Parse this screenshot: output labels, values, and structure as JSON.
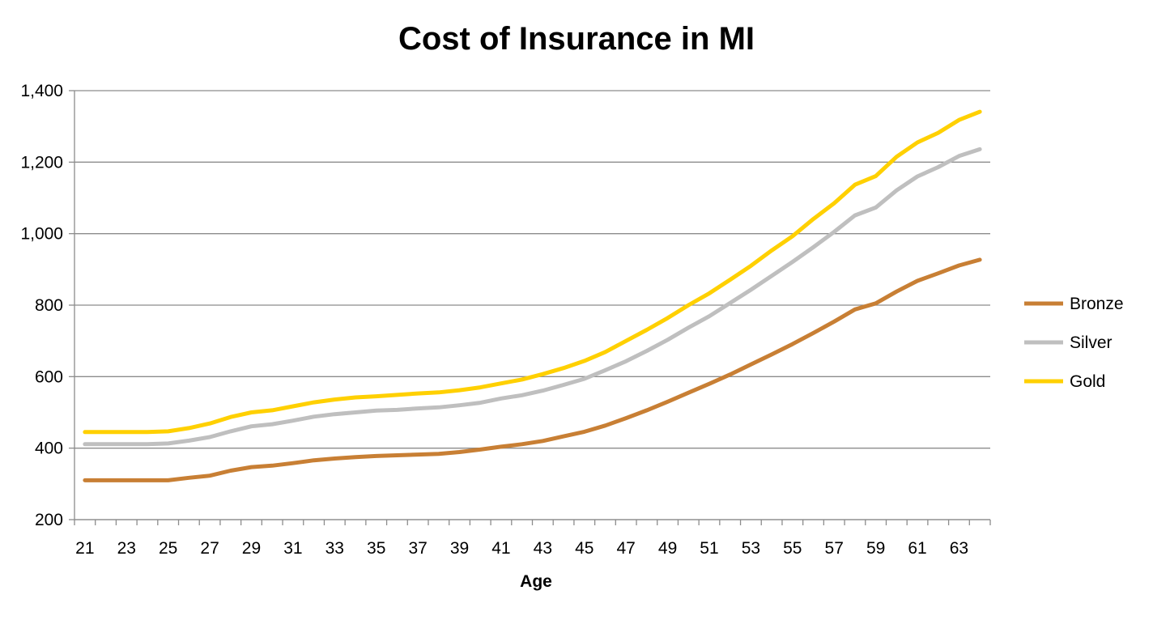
{
  "chart_data": {
    "type": "line",
    "title": "Cost of Insurance in MI",
    "xlabel": "Age",
    "ylabel": "",
    "ylim": [
      200,
      1400
    ],
    "yticks": [
      200,
      400,
      600,
      800,
      1000,
      1200,
      1400
    ],
    "ytick_labels": [
      "200",
      "400",
      "600",
      "800",
      "1,000",
      "1,200",
      "1,400"
    ],
    "xlim": [
      21,
      64
    ],
    "xtick_labels": [
      "21",
      "23",
      "25",
      "27",
      "29",
      "31",
      "33",
      "35",
      "37",
      "39",
      "41",
      "43",
      "45",
      "47",
      "49",
      "51",
      "53",
      "55",
      "57",
      "59",
      "61",
      "63"
    ],
    "grid": true,
    "legend_position": "right",
    "x": [
      21,
      22,
      23,
      24,
      25,
      26,
      27,
      28,
      29,
      30,
      31,
      32,
      33,
      34,
      35,
      36,
      37,
      38,
      39,
      40,
      41,
      42,
      43,
      44,
      45,
      46,
      47,
      48,
      49,
      50,
      51,
      52,
      53,
      54,
      55,
      56,
      57,
      58,
      59,
      60,
      61,
      62,
      63,
      64
    ],
    "series": [
      {
        "name": "Bronze",
        "color": "#C87F34",
        "values": [
          310,
          310,
          310,
          310,
          310,
          317,
          323,
          337,
          347,
          351,
          358,
          366,
          371,
          375,
          378,
          380,
          382,
          384,
          389,
          396,
          404,
          411,
          420,
          433,
          446,
          463,
          484,
          506,
          530,
          555,
          580,
          606,
          634,
          662,
          691,
          722,
          754,
          788,
          805,
          838,
          868,
          889,
          911,
          927
        ]
      },
      {
        "name": "Silver",
        "color": "#BFBFBF",
        "values": [
          411,
          411,
          411,
          411,
          413,
          421,
          431,
          447,
          461,
          467,
          477,
          488,
          495,
          500,
          505,
          507,
          511,
          514,
          520,
          527,
          539,
          548,
          561,
          577,
          594,
          618,
          643,
          672,
          703,
          737,
          769,
          806,
          843,
          882,
          921,
          962,
          1005,
          1051,
          1073,
          1121,
          1160,
          1186,
          1217,
          1236
        ]
      },
      {
        "name": "Gold",
        "color": "#FFD000",
        "values": [
          445,
          445,
          445,
          445,
          447,
          456,
          469,
          487,
          500,
          506,
          517,
          528,
          536,
          542,
          545,
          549,
          553,
          556,
          562,
          570,
          581,
          592,
          607,
          624,
          644,
          669,
          700,
          731,
          764,
          800,
          833,
          871,
          910,
          953,
          993,
          1041,
          1085,
          1137,
          1161,
          1215,
          1255,
          1282,
          1318,
          1341
        ]
      }
    ]
  }
}
